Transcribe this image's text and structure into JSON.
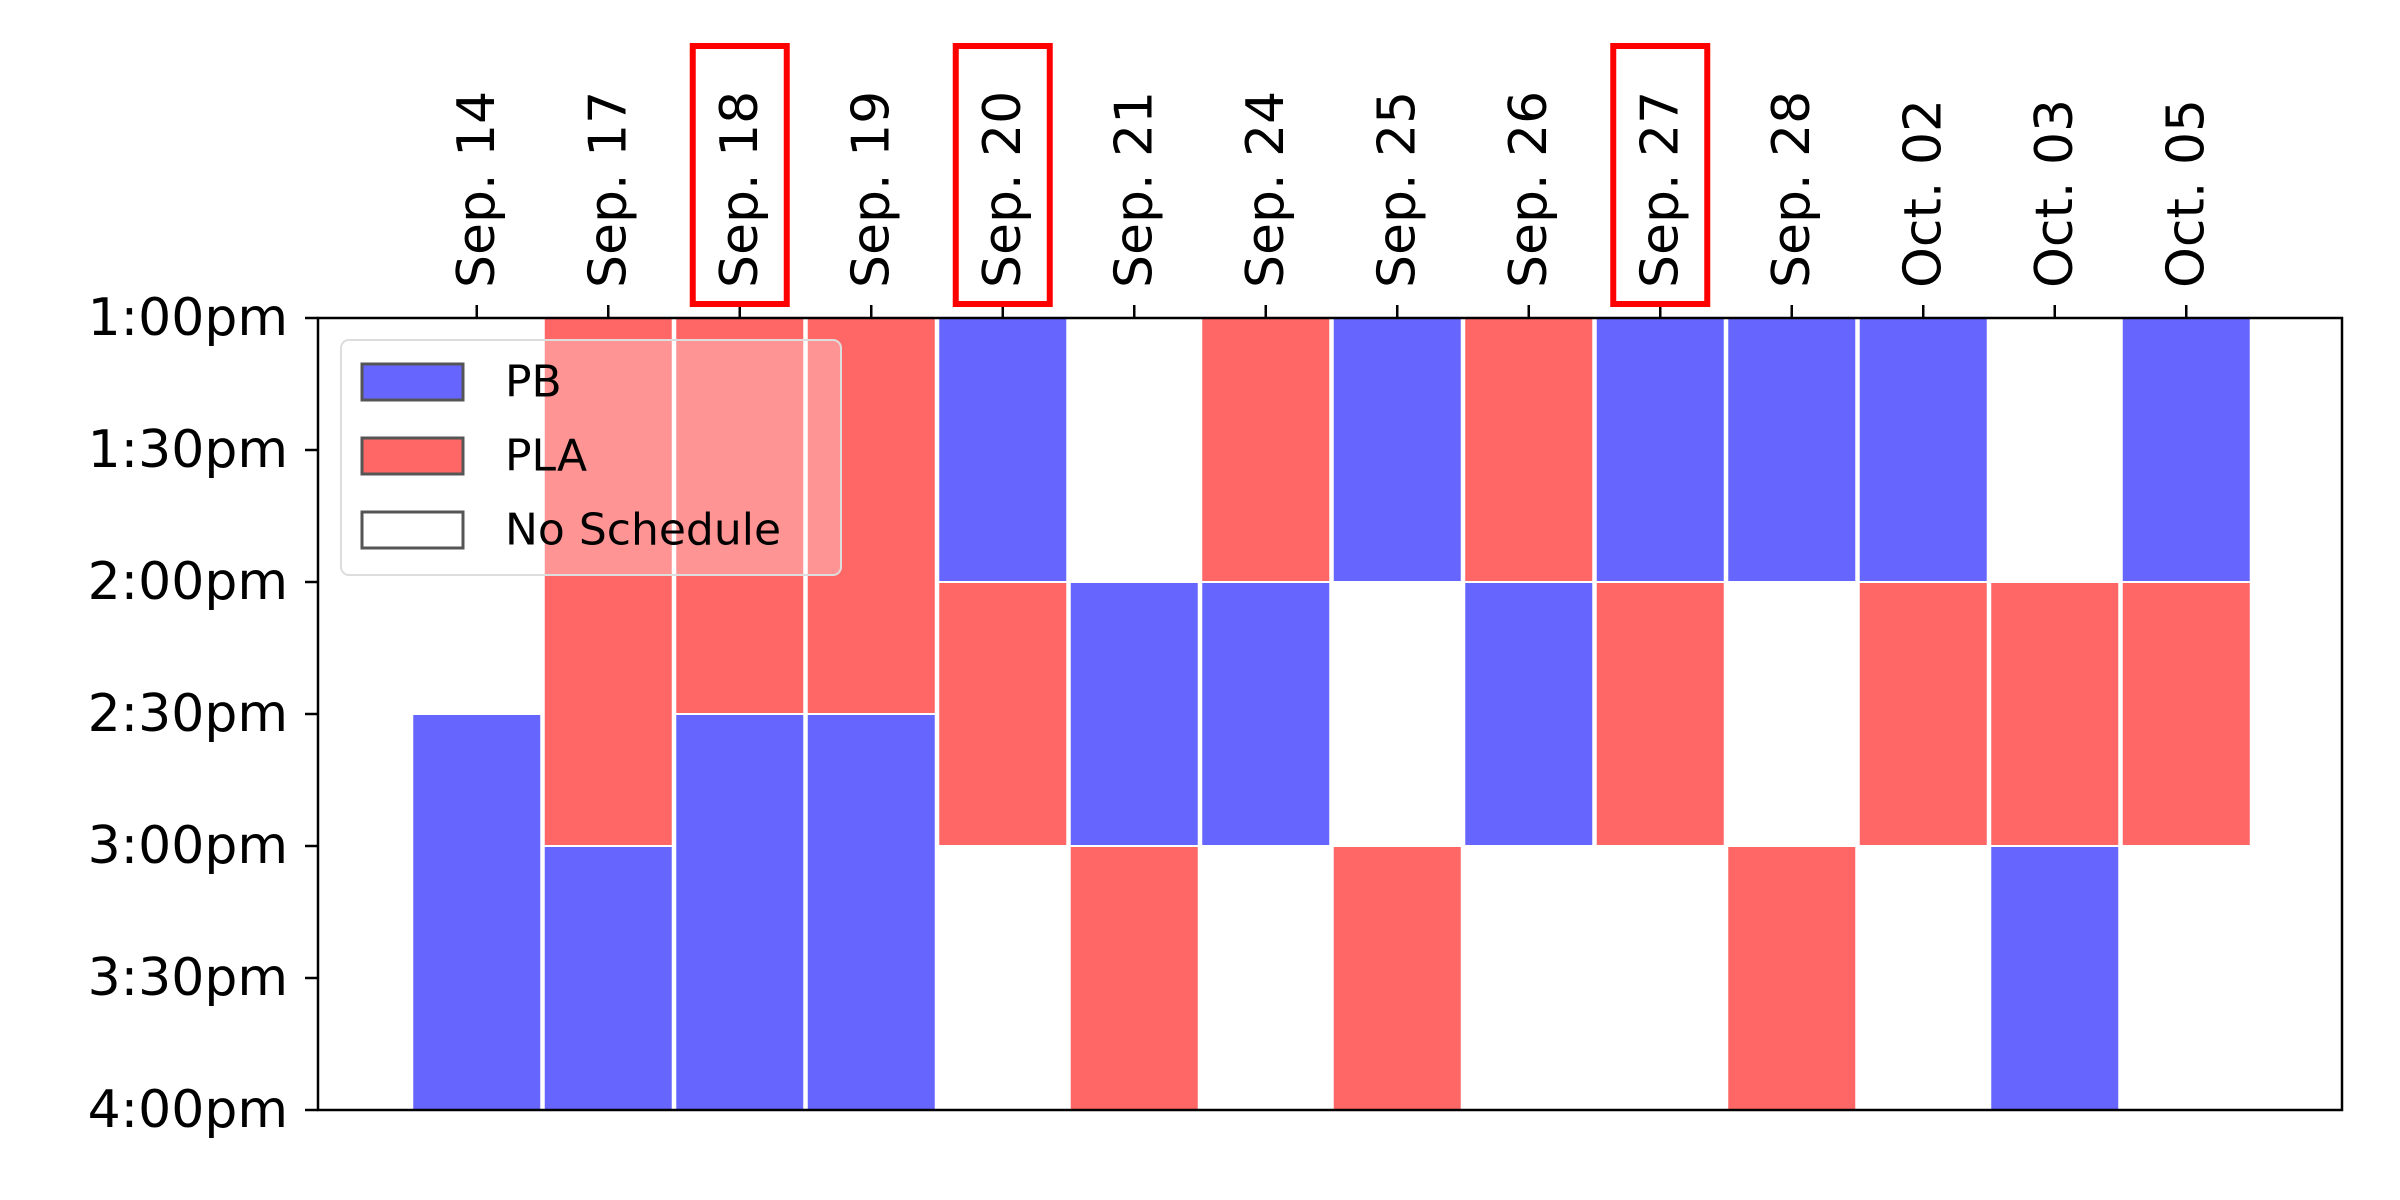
{
  "chart_data": {
    "type": "heatmap",
    "title": "",
    "xlabel": "",
    "ylabel": "",
    "x_position": "top",
    "categories": [
      "Sep. 14",
      "Sep. 17",
      "Sep. 18",
      "Sep. 19",
      "Sep. 20",
      "Sep. 21",
      "Sep. 24",
      "Sep. 25",
      "Sep. 26",
      "Sep. 27",
      "Sep. 28",
      "Oct. 02",
      "Oct. 03",
      "Oct. 05"
    ],
    "highlighted_categories": [
      "Sep. 18",
      "Sep. 20",
      "Sep. 27"
    ],
    "highlight_color": "#ff0000",
    "y_ticks": [
      "1:00pm",
      "1:30pm",
      "2:00pm",
      "2:30pm",
      "3:00pm",
      "3:30pm",
      "4:00pm"
    ],
    "ylim": [
      0,
      3
    ],
    "y_unit": "hours after 1:00pm",
    "legend": {
      "placement": "top-left",
      "entries": [
        {
          "label": "PB",
          "color": "#6666ff"
        },
        {
          "label": "PLA",
          "color": "#ff6666"
        },
        {
          "label": "No Schedule",
          "color": "#ffffff"
        }
      ]
    },
    "segments": [
      {
        "date": "Sep. 14",
        "start": 1.5,
        "end": 3.0,
        "type": "PB"
      },
      {
        "date": "Sep. 17",
        "start": 0.0,
        "end": 2.0,
        "type": "PLA"
      },
      {
        "date": "Sep. 17",
        "start": 2.0,
        "end": 3.0,
        "type": "PB"
      },
      {
        "date": "Sep. 18",
        "start": 0.0,
        "end": 1.5,
        "type": "PLA"
      },
      {
        "date": "Sep. 18",
        "start": 1.5,
        "end": 3.0,
        "type": "PB"
      },
      {
        "date": "Sep. 19",
        "start": 0.0,
        "end": 1.5,
        "type": "PLA"
      },
      {
        "date": "Sep. 19",
        "start": 1.5,
        "end": 3.0,
        "type": "PB"
      },
      {
        "date": "Sep. 20",
        "start": 0.0,
        "end": 1.0,
        "type": "PB"
      },
      {
        "date": "Sep. 20",
        "start": 1.0,
        "end": 2.0,
        "type": "PLA"
      },
      {
        "date": "Sep. 21",
        "start": 1.0,
        "end": 2.0,
        "type": "PB"
      },
      {
        "date": "Sep. 21",
        "start": 2.0,
        "end": 3.0,
        "type": "PLA"
      },
      {
        "date": "Sep. 24",
        "start": 0.0,
        "end": 1.0,
        "type": "PLA"
      },
      {
        "date": "Sep. 24",
        "start": 1.0,
        "end": 2.0,
        "type": "PB"
      },
      {
        "date": "Sep. 25",
        "start": 0.0,
        "end": 1.0,
        "type": "PB"
      },
      {
        "date": "Sep. 25",
        "start": 2.0,
        "end": 3.0,
        "type": "PLA"
      },
      {
        "date": "Sep. 26",
        "start": 0.0,
        "end": 1.0,
        "type": "PLA"
      },
      {
        "date": "Sep. 26",
        "start": 1.0,
        "end": 2.0,
        "type": "PB"
      },
      {
        "date": "Sep. 27",
        "start": 0.0,
        "end": 1.0,
        "type": "PB"
      },
      {
        "date": "Sep. 27",
        "start": 1.0,
        "end": 2.0,
        "type": "PLA"
      },
      {
        "date": "Sep. 28",
        "start": 0.0,
        "end": 1.0,
        "type": "PB"
      },
      {
        "date": "Sep. 28",
        "start": 2.0,
        "end": 3.0,
        "type": "PLA"
      },
      {
        "date": "Oct. 02",
        "start": 0.0,
        "end": 1.0,
        "type": "PB"
      },
      {
        "date": "Oct. 02",
        "start": 1.0,
        "end": 2.0,
        "type": "PLA"
      },
      {
        "date": "Oct. 03",
        "start": 1.0,
        "end": 2.0,
        "type": "PLA"
      },
      {
        "date": "Oct. 03",
        "start": 2.0,
        "end": 3.0,
        "type": "PB"
      },
      {
        "date": "Oct. 05",
        "start": 0.0,
        "end": 1.0,
        "type": "PB"
      },
      {
        "date": "Oct. 05",
        "start": 1.0,
        "end": 2.0,
        "type": "PLA"
      }
    ]
  }
}
